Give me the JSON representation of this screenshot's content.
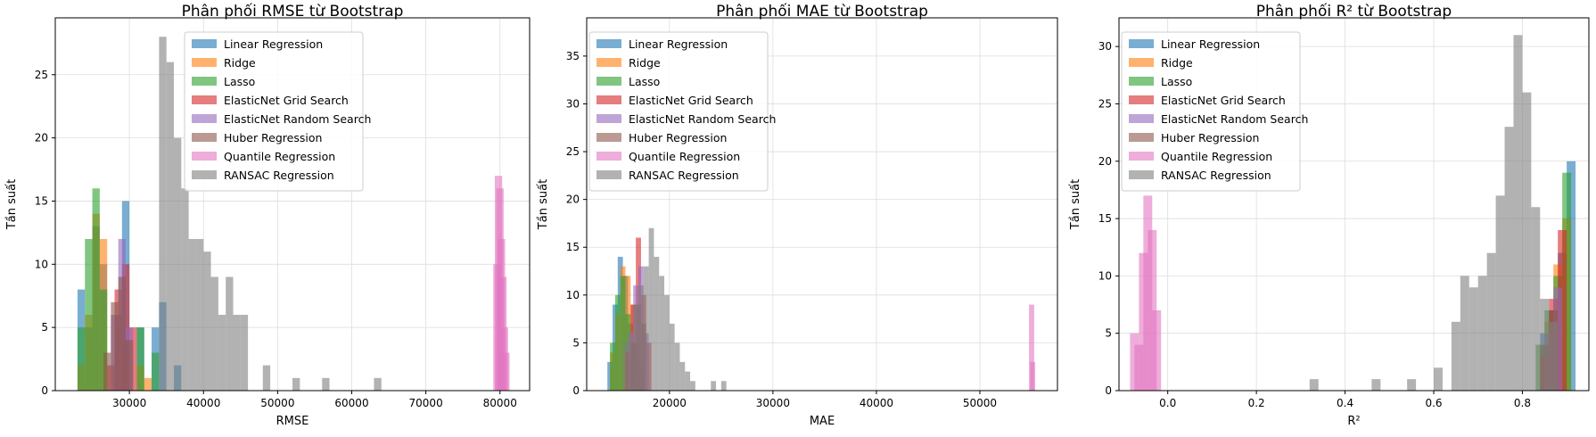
{
  "series_names": [
    "Linear Regression",
    "Ridge",
    "Lasso",
    "ElasticNet Grid Search",
    "ElasticNet Random Search",
    "Huber Regression",
    "Quantile Regression",
    "RANSAC Regression"
  ],
  "series_colors": [
    "#1f77b4",
    "#ff7f0e",
    "#2ca02c",
    "#d62728",
    "#9467bd",
    "#8c564b",
    "#e377c2",
    "#7f7f7f"
  ],
  "chart_data": [
    {
      "type": "bar",
      "title": "Phân phối RMSE từ Bootstrap",
      "xlabel": "RMSE",
      "ylabel": "Tần suất",
      "xlim": [
        20000,
        84000
      ],
      "ylim": [
        0,
        29.5
      ],
      "xticks": [
        30000,
        40000,
        50000,
        60000,
        70000,
        80000
      ],
      "yticks": [
        0,
        5,
        10,
        15,
        20,
        25
      ],
      "legend": "upper center",
      "grid": true,
      "bin_width": 1000,
      "series": [
        {
          "name": "Linear Regression",
          "x": [
            23500,
            24500,
            25500,
            26500,
            29500,
            31500,
            33500,
            34500,
            36500
          ],
          "values": [
            8,
            5,
            13,
            10,
            15,
            5,
            5,
            7,
            2
          ]
        },
        {
          "name": "Ridge",
          "x": [
            23500,
            24500,
            25500,
            26500,
            28500,
            29500,
            31500,
            32500
          ],
          "values": [
            2,
            6,
            14,
            12,
            5,
            3,
            2,
            1
          ]
        },
        {
          "name": "Lasso",
          "x": [
            23500,
            24500,
            25500,
            26500,
            28500,
            29500,
            31500,
            33500
          ],
          "values": [
            5,
            12,
            16,
            8,
            6,
            4,
            5,
            3
          ]
        },
        {
          "name": "ElasticNet Grid Search",
          "x": [
            27500,
            28500,
            29500,
            30500
          ],
          "values": [
            2,
            8,
            10,
            5
          ]
        },
        {
          "name": "ElasticNet Random Search",
          "x": [
            28000,
            29000,
            30000
          ],
          "values": [
            6,
            12,
            5
          ]
        },
        {
          "name": "Huber Regression",
          "x": [
            27000,
            28000,
            29000,
            30000
          ],
          "values": [
            3,
            7,
            9,
            4
          ]
        },
        {
          "name": "Quantile Regression",
          "x": [
            79600,
            79800,
            80000,
            80200,
            80400,
            80600,
            80800
          ],
          "values": [
            10,
            17,
            16,
            12,
            9,
            5,
            3
          ]
        },
        {
          "name": "RANSAC Regression",
          "x": [
            34500,
            35500,
            36500,
            37500,
            38500,
            39500,
            40500,
            41500,
            42500,
            43500,
            44500,
            45500,
            48500,
            52500,
            56500,
            63500
          ],
          "values": [
            28,
            26,
            20,
            16,
            12,
            12,
            11,
            9,
            6,
            9,
            6,
            6,
            2,
            1,
            1,
            1
          ]
        }
      ]
    },
    {
      "type": "bar",
      "title": "Phân phối MAE từ Bootstrap",
      "xlabel": "MAE",
      "ylabel": "Tần suất",
      "xlim": [
        12000,
        57500
      ],
      "ylim": [
        0,
        39
      ],
      "xticks": [
        20000,
        30000,
        40000,
        50000
      ],
      "yticks": [
        0,
        5,
        10,
        15,
        20,
        25,
        30,
        35
      ],
      "legend": "upper left",
      "grid": true,
      "bin_width": 500,
      "series": [
        {
          "name": "Linear Regression",
          "x": [
            14250,
            14750,
            15250,
            15750,
            16250,
            16750,
            17250
          ],
          "values": [
            3,
            9,
            14,
            12,
            7,
            5,
            2
          ]
        },
        {
          "name": "Ridge",
          "x": [
            14500,
            15000,
            15500,
            16000,
            16500,
            17000
          ],
          "values": [
            4,
            8,
            13,
            12,
            9,
            3
          ]
        },
        {
          "name": "Lasso",
          "x": [
            14500,
            15000,
            15500,
            16000,
            16500
          ],
          "values": [
            5,
            10,
            12,
            8,
            4
          ]
        },
        {
          "name": "ElasticNet Grid Search",
          "x": [
            16000,
            16500,
            17000,
            17500,
            18000
          ],
          "values": [
            4,
            9,
            16,
            10,
            5
          ]
        },
        {
          "name": "ElasticNet Random Search",
          "x": [
            16250,
            16750,
            17250,
            17750
          ],
          "values": [
            6,
            11,
            13,
            6
          ]
        },
        {
          "name": "Huber Regression",
          "x": [
            16500,
            17000,
            17500
          ],
          "values": [
            5,
            9,
            7
          ]
        },
        {
          "name": "Quantile Regression",
          "x": [
            55000,
            55100
          ],
          "values": [
            9,
            3
          ]
        },
        {
          "name": "RANSAC Regression",
          "x": [
            15750,
            16250,
            16750,
            17250,
            17750,
            18250,
            18750,
            19250,
            19750,
            20250,
            20750,
            21250,
            21750,
            22250,
            24250,
            25250
          ],
          "values": [
            5,
            6,
            9,
            11,
            13,
            17,
            14,
            12,
            10,
            7,
            5,
            3,
            2,
            1,
            1,
            1
          ]
        }
      ]
    },
    {
      "type": "bar",
      "title": "Phân phối R² từ Bootstrap",
      "xlabel": "R²",
      "ylabel": "Tần suất",
      "xlim": [
        -0.11,
        0.95
      ],
      "ylim": [
        0,
        32.5
      ],
      "xticks": [
        0.0,
        0.2,
        0.4,
        0.6,
        0.8
      ],
      "xtick_labels": [
        "0.0",
        "0.2",
        "0.4",
        "0.6",
        "0.8"
      ],
      "yticks": [
        0,
        5,
        10,
        15,
        20,
        25,
        30
      ],
      "legend": "upper left",
      "grid": true,
      "bin_width": 0.02,
      "series": [
        {
          "name": "Linear Regression",
          "x": [
            0.85,
            0.87,
            0.89,
            0.91
          ],
          "values": [
            5,
            7,
            12,
            20
          ]
        },
        {
          "name": "Ridge",
          "x": [
            0.86,
            0.88,
            0.9
          ],
          "values": [
            6,
            11,
            15
          ]
        },
        {
          "name": "Lasso",
          "x": [
            0.84,
            0.86,
            0.88,
            0.9
          ],
          "values": [
            4,
            7,
            10,
            19
          ]
        },
        {
          "name": "ElasticNet Grid Search",
          "x": [
            0.85,
            0.87,
            0.89
          ],
          "values": [
            3,
            8,
            14
          ]
        },
        {
          "name": "ElasticNet Random Search",
          "x": [
            0.86,
            0.88
          ],
          "values": [
            5,
            9
          ]
        },
        {
          "name": "Huber Regression",
          "x": [
            0.85,
            0.87
          ],
          "values": [
            4,
            7
          ]
        },
        {
          "name": "Quantile Regression",
          "x": [
            -0.075,
            -0.065,
            -0.055,
            -0.045,
            -0.035,
            -0.025
          ],
          "values": [
            5,
            4,
            12,
            17,
            14,
            7
          ]
        },
        {
          "name": "RANSAC Regression",
          "x": [
            0.33,
            0.47,
            0.55,
            0.61,
            0.65,
            0.67,
            0.69,
            0.71,
            0.73,
            0.75,
            0.77,
            0.79,
            0.81,
            0.83,
            0.85,
            0.87
          ],
          "values": [
            1,
            1,
            1,
            2,
            6,
            10,
            9,
            10,
            12,
            17,
            23,
            31,
            26,
            16,
            8,
            6
          ]
        }
      ]
    }
  ]
}
